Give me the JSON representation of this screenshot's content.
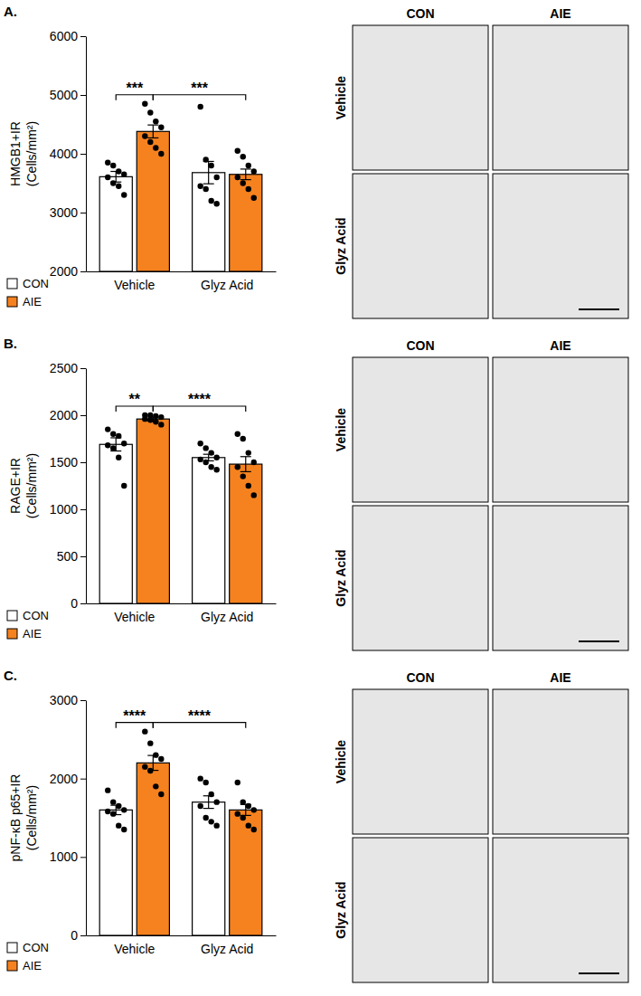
{
  "chart_data": [
    {
      "type": "bar",
      "panel": "A.",
      "ylabel": [
        "HMGB1+IR",
        "(Cells/mm²)"
      ],
      "categories": [
        "Vehicle",
        "Glyz Acid"
      ],
      "series": [
        {
          "name": "CON",
          "color": "#ffffff",
          "values": [
            3610,
            3680
          ],
          "errors": [
            90,
            190
          ],
          "points": [
            [
              3850,
              3800,
              3700,
              3650,
              3600,
              3500,
              3450,
              3300
            ],
            [
              4800,
              3900,
              3800,
              3600,
              3450,
              3400,
              3200,
              3150
            ]
          ]
        },
        {
          "name": "AIE",
          "color": "#f5821f",
          "values": [
            4380,
            3650
          ],
          "errors": [
            110,
            90
          ],
          "points": [
            [
              4850,
              4700,
              4550,
              4450,
              4300,
              4200,
              4100,
              4000
            ],
            [
              4050,
              3950,
              3800,
              3700,
              3600,
              3500,
              3400,
              3250
            ]
          ]
        }
      ],
      "ylim": [
        2000,
        6000
      ],
      "yticks": [
        2000,
        3000,
        4000,
        5000,
        6000
      ],
      "legend": "bottom-left",
      "significance": [
        {
          "label": "***",
          "from": [
            "CON",
            "Vehicle"
          ],
          "to": [
            "AIE",
            "Vehicle"
          ]
        },
        {
          "label": "***",
          "from": [
            "AIE",
            "Vehicle"
          ],
          "to": [
            "AIE",
            "Glyz Acid"
          ]
        }
      ],
      "images": {
        "columns": [
          "CON",
          "AIE"
        ],
        "rows": [
          "Vehicle",
          "Glyz Acid"
        ]
      }
    },
    {
      "type": "bar",
      "panel": "B.",
      "ylabel": [
        "RAGE+IR",
        "(Cells/mm²)"
      ],
      "categories": [
        "Vehicle",
        "Glyz Acid"
      ],
      "series": [
        {
          "name": "CON",
          "color": "#ffffff",
          "values": [
            1690,
            1550
          ],
          "errors": [
            70,
            35
          ],
          "points": [
            [
              1850,
              1800,
              1780,
              1700,
              1680,
              1650,
              1550,
              1250
            ],
            [
              1700,
              1650,
              1600,
              1550,
              1530,
              1500,
              1450,
              1420
            ]
          ]
        },
        {
          "name": "AIE",
          "color": "#f5821f",
          "values": [
            1960,
            1480
          ],
          "errors": [
            20,
            80
          ],
          "points": [
            [
              2000,
              2000,
              1990,
              1980,
              1960,
              1950,
              1930,
              1900
            ],
            [
              1800,
              1750,
              1600,
              1500,
              1450,
              1350,
              1250,
              1150
            ]
          ]
        }
      ],
      "ylim": [
        0,
        2500
      ],
      "yticks": [
        0,
        500,
        1000,
        1500,
        2000,
        2500
      ],
      "legend": "bottom-left",
      "significance": [
        {
          "label": "**",
          "from": [
            "CON",
            "Vehicle"
          ],
          "to": [
            "AIE",
            "Vehicle"
          ]
        },
        {
          "label": "****",
          "from": [
            "AIE",
            "Vehicle"
          ],
          "to": [
            "AIE",
            "Glyz Acid"
          ]
        }
      ],
      "images": {
        "columns": [
          "CON",
          "AIE"
        ],
        "rows": [
          "Vehicle",
          "Glyz Acid"
        ]
      }
    },
    {
      "type": "bar",
      "panel": "C.",
      "ylabel": [
        "pNF-κB p65+IR",
        "(Cells/mm²)"
      ],
      "categories": [
        "Vehicle",
        "Glyz Acid"
      ],
      "series": [
        {
          "name": "CON",
          "color": "#ffffff",
          "values": [
            1600,
            1700
          ],
          "errors": [
            60,
            80
          ],
          "points": [
            [
              1850,
              1700,
              1650,
              1600,
              1580,
              1550,
              1400,
              1350
            ],
            [
              2000,
              1950,
              1800,
              1700,
              1650,
              1500,
              1450,
              1400
            ]
          ]
        },
        {
          "name": "AIE",
          "color": "#f5821f",
          "values": [
            2200,
            1600
          ],
          "errors": [
            95,
            70
          ],
          "points": [
            [
              2600,
              2450,
              2300,
              2250,
              2150,
              2100,
              1900,
              1800
            ],
            [
              1950,
              1700,
              1650,
              1600,
              1550,
              1500,
              1400,
              1350
            ]
          ]
        }
      ],
      "ylim": [
        0,
        3000
      ],
      "yticks": [
        0,
        1000,
        2000,
        3000
      ],
      "legend": "bottom-left",
      "significance": [
        {
          "label": "****",
          "from": [
            "CON",
            "Vehicle"
          ],
          "to": [
            "AIE",
            "Vehicle"
          ]
        },
        {
          "label": "****",
          "from": [
            "AIE",
            "Vehicle"
          ],
          "to": [
            "AIE",
            "Glyz Acid"
          ]
        }
      ],
      "images": {
        "columns": [
          "CON",
          "AIE"
        ],
        "rows": [
          "Vehicle",
          "Glyz Acid"
        ]
      }
    }
  ]
}
